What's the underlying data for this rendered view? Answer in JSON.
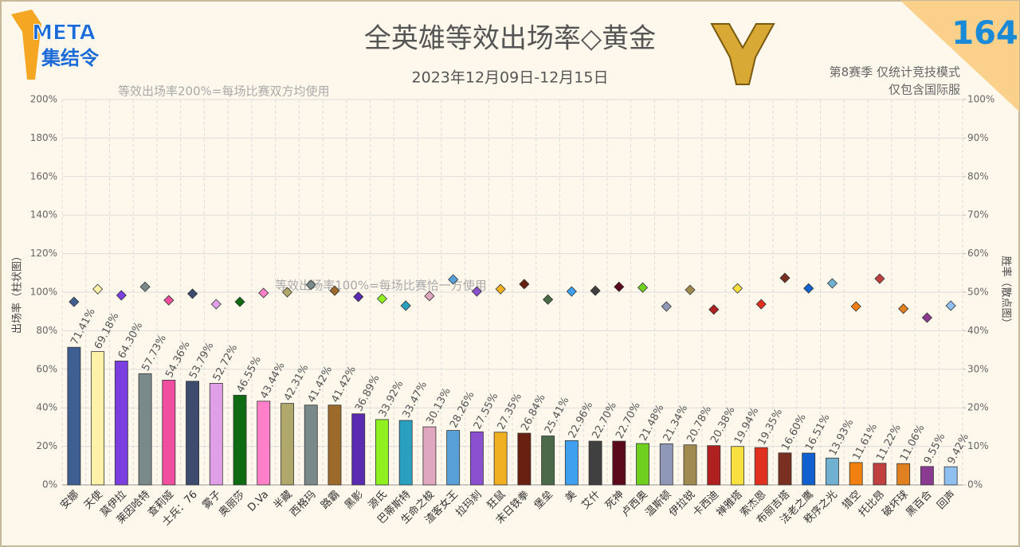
{
  "chart_data": {
    "type": "bar",
    "title": "全英雄等效出场率◇黄金",
    "subtitle": "2023年12月09日-12月15日",
    "logo": [
      "META",
      "集结令"
    ],
    "issue": "164",
    "notes": [
      "第8赛季 仅统计竞技模式",
      "仅包含国际服"
    ],
    "annotations": [
      "等效出场率200%=每场比赛双方均使用",
      "等效出场率100%=每场比赛恰一方使用"
    ],
    "ylabel": "出场率（柱状图）",
    "y2label": "胜率（散点图）",
    "categories": [
      "安娜",
      "天使",
      "莫伊拉",
      "莱因哈特",
      "查莉娅",
      "士兵：76",
      "雾子",
      "奥丽莎",
      "D.Va",
      "半藏",
      "西格玛",
      "路霸",
      "黑影",
      "源氏",
      "巴蒂斯特",
      "生命之梭",
      "渣客女王",
      "拉玛刹",
      "狂鼠",
      "末日铁拳",
      "堡垒",
      "美",
      "艾什",
      "死神",
      "卢西奥",
      "温斯顿",
      "伊拉锐",
      "卡西迪",
      "禅雅塔",
      "索杰恩",
      "布丽吉塔",
      "法老之鹰",
      "秩序之光",
      "猎空",
      "托比昂",
      "破坏球",
      "黑百合",
      "回声"
    ],
    "series": [
      {
        "values": [
          71.41,
          69.18,
          64.3,
          57.73,
          54.36,
          53.79,
          52.72,
          46.55,
          43.44,
          42.31,
          41.42,
          41.42,
          36.89,
          33.92,
          33.47,
          30.13,
          28.26,
          27.55,
          27.35,
          26.84,
          25.41,
          22.96,
          22.7,
          22.7,
          21.48,
          21.34,
          20.78,
          20.38,
          19.94,
          19.35,
          16.6,
          16.51,
          13.93,
          11.61,
          11.22,
          11.06,
          9.55,
          9.42
        ],
        "value_labels": [
          "71.41%",
          "69.18%",
          "64.30%",
          "57.73%",
          "54.36%",
          "53.79%",
          "52.72%",
          "46.55%",
          "43.44%",
          "42.31%",
          "41.42%",
          "41.42%",
          "36.89%",
          "33.92%",
          "33.47%",
          "30.13%",
          "28.26%",
          "27.55%",
          "27.35%",
          "26.84%",
          "25.41%",
          "22.96%",
          "22.70%",
          "22.70%",
          "21.48%",
          "21.34%",
          "20.78%",
          "20.38%",
          "19.94%",
          "19.35%",
          "16.60%",
          "16.51%",
          "13.93%",
          "11.61%",
          "11.22%",
          "11.06%",
          "9.55%",
          "9.42%"
        ],
        "colors": [
          "#3f5f93",
          "#fff2a8",
          "#7b3fe0",
          "#7a8a8a",
          "#f04fa0",
          "#3c4b6e",
          "#e0a0e8",
          "#0f6b12",
          "#ff7fc8",
          "#b0a86a",
          "#7a8a8a",
          "#9c6a2a",
          "#5a2ab0",
          "#90f020",
          "#2aa0c0",
          "#e0a8c0",
          "#5aa0d8",
          "#8a50d0",
          "#f0b020",
          "#6a2010",
          "#4a6a4a",
          "#40a0f0",
          "#404040",
          "#5a0a1a",
          "#70d020",
          "#9098b8",
          "#a08a50",
          "#b02020",
          "#f8e040",
          "#e03020",
          "#7a3020",
          "#1060d0",
          "#70b0d0",
          "#f08010",
          "#c04040",
          "#e08020",
          "#8a3a90",
          "#90c0f0"
        ]
      },
      {
        "axis": "y2",
        "values": [
          47.5,
          50.8,
          49.2,
          51.4,
          47.9,
          49.6,
          46.9,
          47.5,
          49.8,
          50.0,
          51.9,
          50.4,
          48.8,
          48.3,
          46.5,
          49.0,
          53.3,
          50.2,
          50.8,
          52.1,
          48.1,
          50.2,
          50.4,
          51.4,
          51.2,
          46.3,
          50.6,
          45.5,
          51.0,
          46.9,
          53.7,
          51.0,
          52.3,
          46.3,
          53.5,
          45.7,
          43.4,
          46.5
        ]
      }
    ],
    "ylim": [
      0,
      200
    ],
    "yticks": [
      {
        "value": 0,
        "label": "0%"
      },
      {
        "value": 20,
        "label": "20%"
      },
      {
        "value": 40,
        "label": "40%"
      },
      {
        "value": 60,
        "label": "60%"
      },
      {
        "value": 80,
        "label": "80%"
      },
      {
        "value": 100,
        "label": "100%"
      },
      {
        "value": 120,
        "label": "120%"
      },
      {
        "value": 140,
        "label": "140%"
      },
      {
        "value": 160,
        "label": "160%"
      },
      {
        "value": 180,
        "label": "180%"
      },
      {
        "value": 200,
        "label": "200%"
      }
    ],
    "y2lim": [
      0,
      100
    ],
    "y2ticks": [
      {
        "value": 0,
        "label": "0%"
      },
      {
        "value": 10,
        "label": "10%"
      },
      {
        "value": 20,
        "label": "20%"
      },
      {
        "value": 30,
        "label": "30%"
      },
      {
        "value": 40,
        "label": "40%"
      },
      {
        "value": 50,
        "label": "50%"
      },
      {
        "value": 60,
        "label": "60%"
      },
      {
        "value": 70,
        "label": "70%"
      },
      {
        "value": 80,
        "label": "80%"
      },
      {
        "value": 90,
        "label": "90%"
      },
      {
        "value": 100,
        "label": "100%"
      }
    ],
    "grid": true
  }
}
